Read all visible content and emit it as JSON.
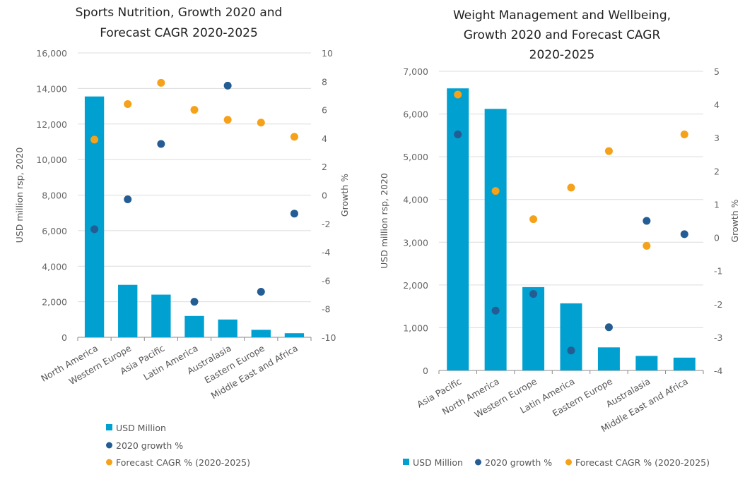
{
  "colors": {
    "usd_million": "#00a0d0",
    "growth_2020": "#245c94",
    "forecast_cagr": "#f5a11a",
    "grid": "#dcdcdc"
  },
  "chart_data": [
    {
      "type": "bar",
      "title_lines": [
        "Sports Nutrition, Growth 2020 and",
        "Forecast CAGR 2020-2025"
      ],
      "ylabel": "USD million rsp, 2020",
      "y2label": "Growth %",
      "ylim": [
        0,
        16000
      ],
      "yticks": [
        "0",
        "2,000",
        "4,000",
        "6,000",
        "8,000",
        "10,000",
        "12,000",
        "14,000",
        "16,000"
      ],
      "y2lim": [
        -10,
        10
      ],
      "y2ticks": [
        "-10",
        "-8",
        "-6",
        "-4",
        "-2",
        "0",
        "2",
        "4",
        "6",
        "8",
        "10"
      ],
      "grid": true,
      "legend_position": "bottom",
      "legend_layout": "vertical",
      "categories": [
        "North America",
        "Western Europe",
        "Asia Pacific",
        "Latin America",
        "Australasia",
        "Eastern Europe",
        "Middle East and Africa"
      ],
      "series": [
        {
          "name": "USD Million",
          "kind": "bar",
          "axis": "left",
          "values": [
            13550,
            2950,
            2400,
            1200,
            1000,
            420,
            230
          ]
        },
        {
          "name": "2020 growth %",
          "kind": "dot",
          "axis": "right",
          "values": [
            -2.4,
            -0.3,
            3.6,
            -7.5,
            7.7,
            -6.8,
            -1.3
          ]
        },
        {
          "name": "Forecast CAGR % (2020-2025)",
          "kind": "dot",
          "axis": "right",
          "values": [
            3.9,
            6.4,
            7.9,
            6.0,
            5.3,
            5.1,
            4.1
          ]
        }
      ]
    },
    {
      "type": "bar",
      "title_lines": [
        "Weight Management and Wellbeing,",
        "Growth 2020 and Forecast CAGR",
        "2020-2025"
      ],
      "ylabel": "USD million rsp, 2020",
      "y2label": "Growth %",
      "ylim": [
        0,
        7000
      ],
      "yticks": [
        "0",
        "1,000",
        "2,000",
        "3,000",
        "4,000",
        "5,000",
        "6,000",
        "7,000"
      ],
      "y2lim": [
        -4,
        5
      ],
      "y2ticks": [
        "-4",
        "-3",
        "-2",
        "-1",
        "0",
        "1",
        "2",
        "3",
        "4",
        "5"
      ],
      "grid": true,
      "legend_position": "bottom",
      "legend_layout": "horizontal",
      "categories": [
        "Asia Pacific",
        "North America",
        "Western Europe",
        "Latin America",
        "Eastern Europe",
        "Australasia",
        "Middle East and Africa"
      ],
      "series": [
        {
          "name": "USD Million",
          "kind": "bar",
          "axis": "left",
          "values": [
            6600,
            6120,
            1950,
            1570,
            540,
            340,
            300
          ]
        },
        {
          "name": "2020 growth %",
          "kind": "dot",
          "axis": "right",
          "values": [
            3.1,
            -2.2,
            -1.7,
            -3.4,
            -2.7,
            0.5,
            0.1
          ]
        },
        {
          "name": "Forecast CAGR % (2020-2025)",
          "kind": "dot",
          "axis": "right",
          "values": [
            4.3,
            1.4,
            0.55,
            1.5,
            2.6,
            -0.25,
            3.1
          ]
        }
      ]
    }
  ]
}
